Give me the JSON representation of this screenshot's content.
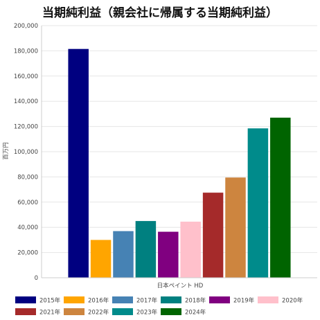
{
  "chart_data": {
    "type": "bar",
    "title": "当期純利益（親会社に帰属する当期純利益）",
    "xlabel": "日本ペイント HD",
    "ylabel": "百万円",
    "ylim": [
      0,
      200000
    ],
    "yticks": [
      0,
      20000,
      40000,
      60000,
      80000,
      100000,
      120000,
      140000,
      160000,
      180000,
      200000
    ],
    "grid": true,
    "legend_position": "bottom",
    "series": [
      {
        "name": "2015年",
        "value": 181500,
        "color": "#000080"
      },
      {
        "name": "2016年",
        "value": 30000,
        "color": "#FFA500"
      },
      {
        "name": "2017年",
        "value": 37000,
        "color": "#4682B4"
      },
      {
        "name": "2018年",
        "value": 45000,
        "color": "#008080"
      },
      {
        "name": "2019年",
        "value": 36500,
        "color": "#800080"
      },
      {
        "name": "2020年",
        "value": 44500,
        "color": "#FFC0CB"
      },
      {
        "name": "2021年",
        "value": 67500,
        "color": "#A52A2A"
      },
      {
        "name": "2022年",
        "value": 79500,
        "color": "#CD853F"
      },
      {
        "name": "2023年",
        "value": 118500,
        "color": "#008B8B"
      },
      {
        "name": "2024年",
        "value": 127000,
        "color": "#006400"
      }
    ]
  }
}
